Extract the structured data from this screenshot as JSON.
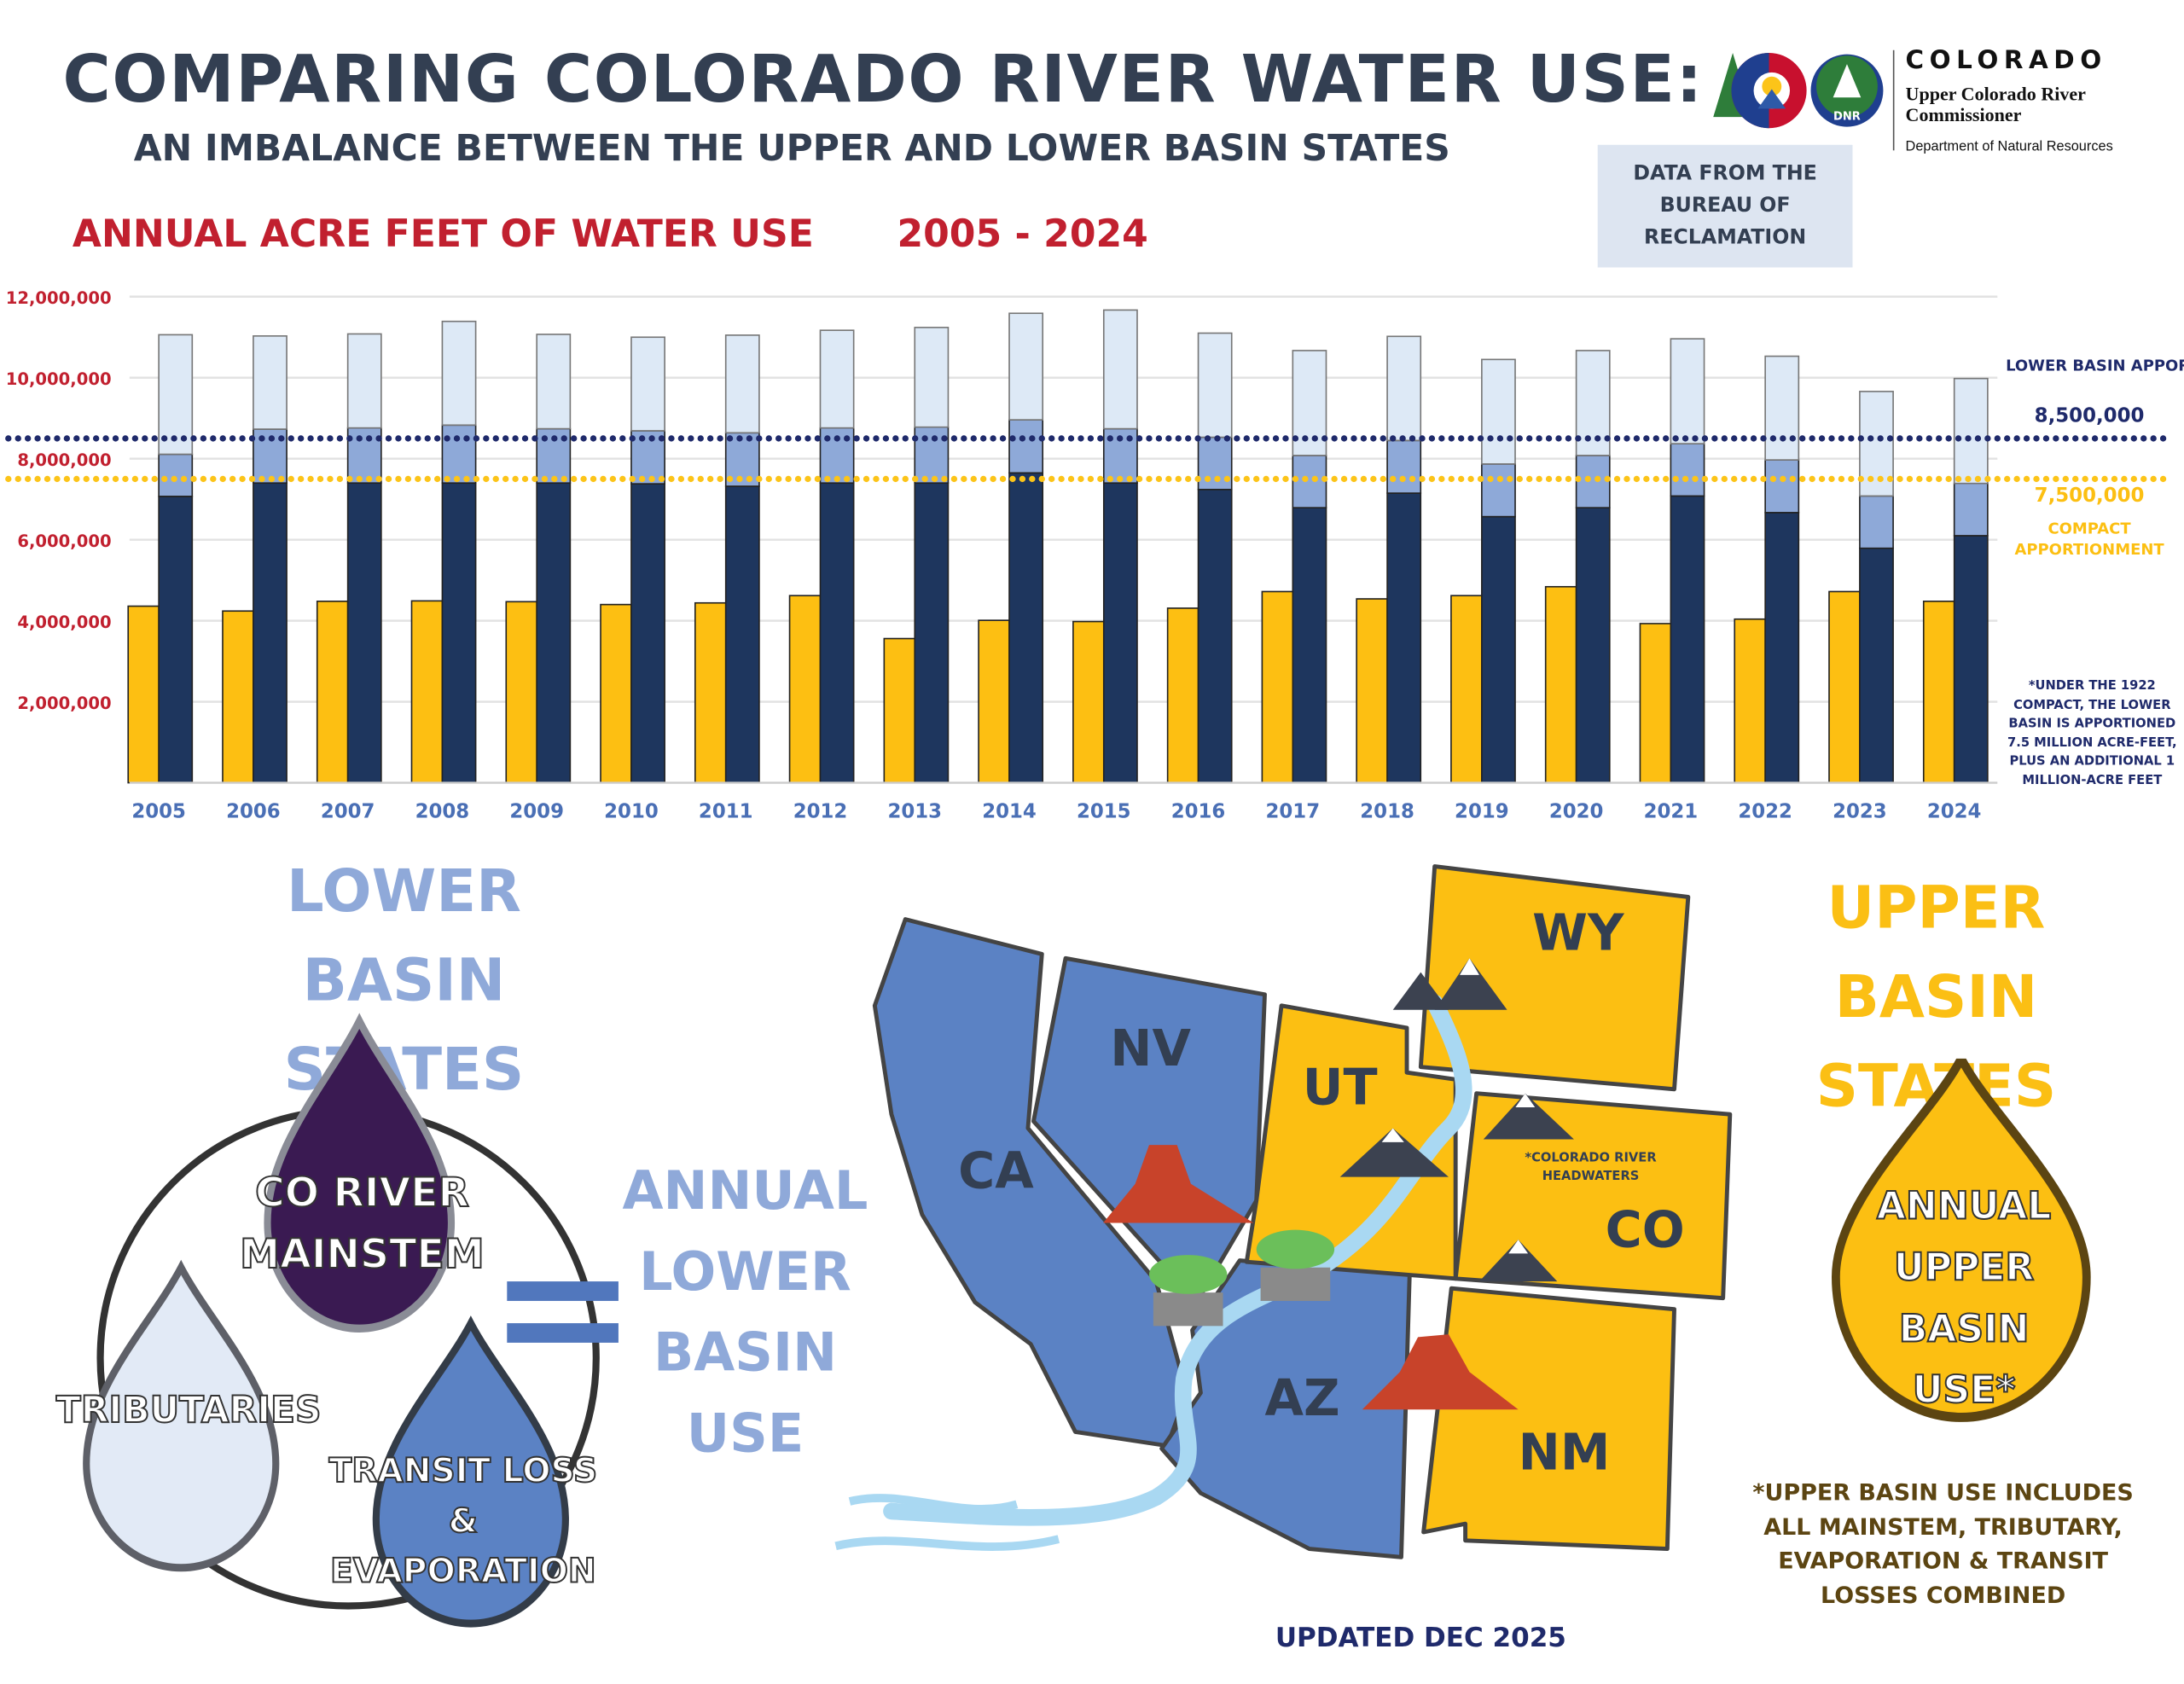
{
  "header": {
    "title": "COMPARING COLORADO RIVER WATER USE:",
    "subtitle": "AN IMBALANCE BETWEEN THE UPPER AND LOWER BASIN STATES",
    "chart_title": "ANNUAL ACRE FEET OF WATER USE",
    "chart_years": "2005 - 2024",
    "source": "DATA FROM THE BUREAU OF RECLAMATION"
  },
  "logo": {
    "state": "COLORADO",
    "org": "Upper Colorado River Commissioner",
    "dept": "Department of Natural Resources",
    "badge": "DNR"
  },
  "chart_data": {
    "type": "bar",
    "title": "ANNUAL ACRE FEET OF WATER USE 2005 - 2024",
    "xlabel": "",
    "ylabel": "",
    "ylim": [
      0,
      12000000
    ],
    "y_ticks": [
      "2,000,000",
      "4,000,000",
      "6,000,000",
      "8,000,000",
      "10,000,000",
      "12,000,000"
    ],
    "y_tick_values": [
      2000000,
      4000000,
      6000000,
      8000000,
      10000000,
      12000000
    ],
    "grid": true,
    "categories": [
      "2005",
      "2006",
      "2007",
      "2008",
      "2009",
      "2010",
      "2011",
      "2012",
      "2013",
      "2014",
      "2015",
      "2016",
      "2017",
      "2018",
      "2019",
      "2020",
      "2021",
      "2022",
      "2023",
      "2024"
    ],
    "series": [
      {
        "stack": "upper",
        "color": "#fdbf12",
        "values": [
          4360000,
          4240000,
          4480000,
          4490000,
          4470000,
          4400000,
          4440000,
          4620000,
          3560000,
          4010000,
          3980000,
          4310000,
          4720000,
          4540000,
          4620000,
          4840000,
          3930000,
          4040000,
          4720000,
          4480000
        ]
      },
      {
        "stack": "lower",
        "color": "#1e365e",
        "values": [
          7070000,
          7400000,
          7400000,
          7400000,
          7400000,
          7380000,
          7320000,
          7400000,
          7400000,
          7650000,
          7400000,
          7240000,
          6790000,
          7150000,
          6570000,
          6790000,
          7080000,
          6670000,
          5790000,
          6100000
        ]
      },
      {
        "stack": "lower",
        "color": "#8ea9d8",
        "values": [
          1040000,
          1330000,
          1360000,
          1430000,
          1340000,
          1310000,
          1320000,
          1360000,
          1380000,
          1310000,
          1340000,
          1290000,
          1290000,
          1300000,
          1300000,
          1290000,
          1290000,
          1300000,
          1290000,
          1290000
        ]
      },
      {
        "stack": "lower",
        "color": "#dde9f6",
        "values": [
          2950000,
          2300000,
          2320000,
          2560000,
          2330000,
          2310000,
          2410000,
          2410000,
          2460000,
          2630000,
          2930000,
          2570000,
          2590000,
          2570000,
          2580000,
          2590000,
          2590000,
          2560000,
          2580000,
          2590000
        ]
      }
    ],
    "reference_lines": [
      {
        "value": 8500000,
        "color": "#1f2a6b",
        "label": "LOWER BASIN APPORTIONMENT*",
        "value_label": "8,500,000"
      },
      {
        "value": 7500000,
        "color": "#fcc419",
        "label": "COMPACT APPORTIONMENT",
        "value_label": "7,500,000"
      }
    ],
    "footnote": "*UNDER THE 1922 COMPACT, THE LOWER BASIN IS APPORTIONED 7.5 MILLION ACRE-FEET, PLUS AN ADDITIONAL 1 MILLION-ACRE FEET"
  },
  "lower": {
    "heading_1": "LOWER",
    "heading_2": "BASIN STATES",
    "drop_mainstem_1": "CO RIVER",
    "drop_mainstem_2": "MAINSTEM",
    "drop_tributaries": "TRIBUTARIES",
    "drop_transit_1": "TRANSIT LOSS",
    "drop_transit_2": "&",
    "drop_transit_3": "EVAPORATION",
    "result_1": "ANNUAL",
    "result_2": "LOWER",
    "result_3": "BASIN",
    "result_4": "USE",
    "colors": {
      "mainstem": "#3a1a52",
      "tributaries": "#e2eaf6",
      "transit": "#5b82c4"
    }
  },
  "map": {
    "states": {
      "CA": "CA",
      "NV": "NV",
      "AZ": "AZ",
      "UT": "UT",
      "WY": "WY",
      "CO": "CO",
      "NM": "NM"
    },
    "headwaters_note_1": "*COLORADO RIVER",
    "headwaters_note_2": "HEADWATERS",
    "colors": {
      "lower": "#5b82c4",
      "upper": "#fcbf12",
      "river": "#a9d8f2"
    }
  },
  "upper": {
    "heading_1": "UPPER",
    "heading_2": "BASIN STATES",
    "drop_1": "ANNUAL",
    "drop_2": "UPPER",
    "drop_3": "BASIN",
    "drop_4": "USE*",
    "note": "*UPPER BASIN USE INCLUDES ALL MAINSTEM, TRIBUTARY, EVAPORATION & TRANSIT LOSSES COMBINED"
  },
  "footer": {
    "updated": "UPDATED DEC 2025"
  }
}
